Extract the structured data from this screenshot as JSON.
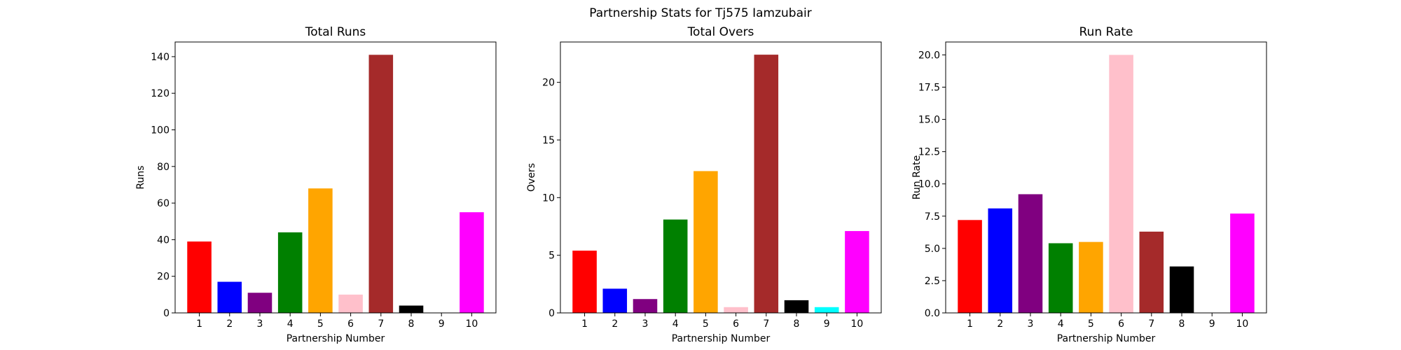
{
  "suptitle": "Partnership Stats for Tj575 Iamzubair",
  "chart_data": [
    {
      "type": "bar",
      "title": "Total Runs",
      "xlabel": "Partnership Number",
      "ylabel": "Runs",
      "categories": [
        "1",
        "2",
        "3",
        "4",
        "5",
        "6",
        "7",
        "8",
        "9",
        "10"
      ],
      "values": [
        39,
        17,
        11,
        44,
        68,
        10,
        141,
        4,
        0,
        55
      ],
      "colors": [
        "#ff0000",
        "#0000ff",
        "#800080",
        "#008000",
        "#ffa500",
        "#ffc0cb",
        "#a52a2a",
        "#000000",
        "#00ffff",
        "#ff00ff"
      ],
      "ylim": [
        0,
        148
      ],
      "yticks": [
        0,
        20,
        40,
        60,
        80,
        100,
        120,
        140
      ],
      "ytick_labels": [
        "0",
        "20",
        "40",
        "60",
        "80",
        "100",
        "120",
        "140"
      ]
    },
    {
      "type": "bar",
      "title": "Total Overs",
      "xlabel": "Partnership Number",
      "ylabel": "Overs",
      "categories": [
        "1",
        "2",
        "3",
        "4",
        "5",
        "6",
        "7",
        "8",
        "9",
        "10"
      ],
      "values": [
        5.4,
        2.1,
        1.2,
        8.1,
        12.3,
        0.5,
        22.4,
        1.1,
        0.5,
        7.1
      ],
      "colors": [
        "#ff0000",
        "#0000ff",
        "#800080",
        "#008000",
        "#ffa500",
        "#ffc0cb",
        "#a52a2a",
        "#000000",
        "#00ffff",
        "#ff00ff"
      ],
      "ylim": [
        0,
        23.5
      ],
      "yticks": [
        0,
        5,
        10,
        15,
        20
      ],
      "ytick_labels": [
        "0",
        "5",
        "10",
        "15",
        "20"
      ]
    },
    {
      "type": "bar",
      "title": "Run Rate",
      "xlabel": "Partnership Number",
      "ylabel": "Run Rate",
      "categories": [
        "1",
        "2",
        "3",
        "4",
        "5",
        "6",
        "7",
        "8",
        "9",
        "10"
      ],
      "values": [
        7.2,
        8.1,
        9.2,
        5.4,
        5.5,
        20.0,
        6.3,
        3.6,
        0,
        7.7
      ],
      "colors": [
        "#ff0000",
        "#0000ff",
        "#800080",
        "#008000",
        "#ffa500",
        "#ffc0cb",
        "#a52a2a",
        "#000000",
        "#00ffff",
        "#ff00ff"
      ],
      "ylim": [
        0,
        21
      ],
      "yticks": [
        0,
        2.5,
        5,
        7.5,
        10,
        12.5,
        15,
        17.5,
        20
      ],
      "ytick_labels": [
        "0.0",
        "2.5",
        "5.0",
        "7.5",
        "10.0",
        "12.5",
        "15.0",
        "17.5",
        "20.0"
      ]
    }
  ]
}
